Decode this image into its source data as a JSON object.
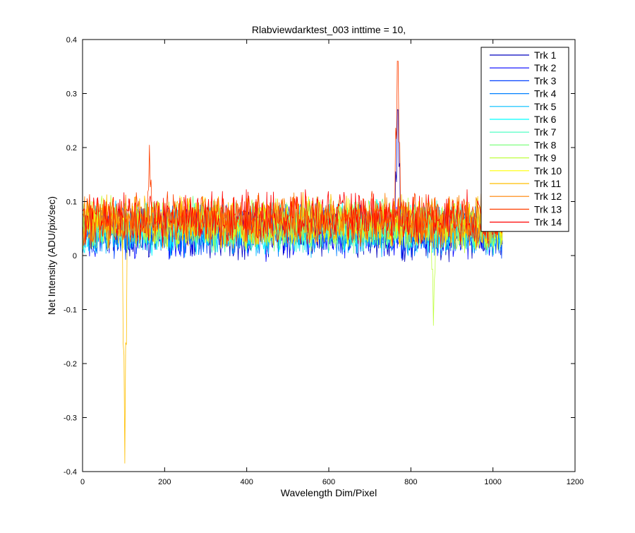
{
  "chart_data": {
    "type": "line",
    "title": "Rlabviewdarktest_003 inttime = 10,",
    "xlabel": "Wavelength Dim/Pixel",
    "ylabel": "Net Intensity (ADU/pix/sec)",
    "xlim": [
      0,
      1200
    ],
    "ylim": [
      -0.4,
      0.4
    ],
    "xticks": [
      "0",
      "200",
      "400",
      "600",
      "800",
      "1000",
      "1200"
    ],
    "yticks": [
      "0.4",
      "0.3",
      "0.2",
      "0.1",
      "0",
      "-0.1",
      "-0.2",
      "-0.3",
      "-0.4"
    ],
    "grid": false,
    "legend_position": "top-right",
    "pixel_range": [
      1,
      1024
    ],
    "noise_band": {
      "typical_min": -0.03,
      "typical_max": 0.15,
      "series_1_mean": 0.04,
      "series_14_mean": 0.07
    },
    "features": [
      {
        "series": "Trk 1",
        "x": 768,
        "y": 0.27,
        "label": "peak"
      },
      {
        "series": "Trk 13",
        "x": 768,
        "y": 0.36,
        "label": "peak"
      },
      {
        "series": "Trk 13",
        "x": 163,
        "y": 0.205,
        "label": "spike"
      },
      {
        "series": "Trk 11",
        "x": 103,
        "y": -0.385,
        "label": "dip"
      },
      {
        "series": "Trk 9",
        "x": 855,
        "y": -0.13,
        "label": "dip"
      }
    ],
    "series": [
      {
        "name": "Trk 1",
        "color": "#0000bf"
      },
      {
        "name": "Trk 2",
        "color": "#0000ff"
      },
      {
        "name": "Trk 3",
        "color": "#0040ff"
      },
      {
        "name": "Trk 4",
        "color": "#0080ff"
      },
      {
        "name": "Trk 5",
        "color": "#00bfff"
      },
      {
        "name": "Trk 6",
        "color": "#00ffff"
      },
      {
        "name": "Trk 7",
        "color": "#40ffbf"
      },
      {
        "name": "Trk 8",
        "color": "#80ff80"
      },
      {
        "name": "Trk 9",
        "color": "#bfff40"
      },
      {
        "name": "Trk 10",
        "color": "#ffff00"
      },
      {
        "name": "Trk 11",
        "color": "#ffbf00"
      },
      {
        "name": "Trk 12",
        "color": "#ff8000"
      },
      {
        "name": "Trk 13",
        "color": "#ff4000"
      },
      {
        "name": "Trk 14",
        "color": "#ff0000"
      }
    ]
  }
}
